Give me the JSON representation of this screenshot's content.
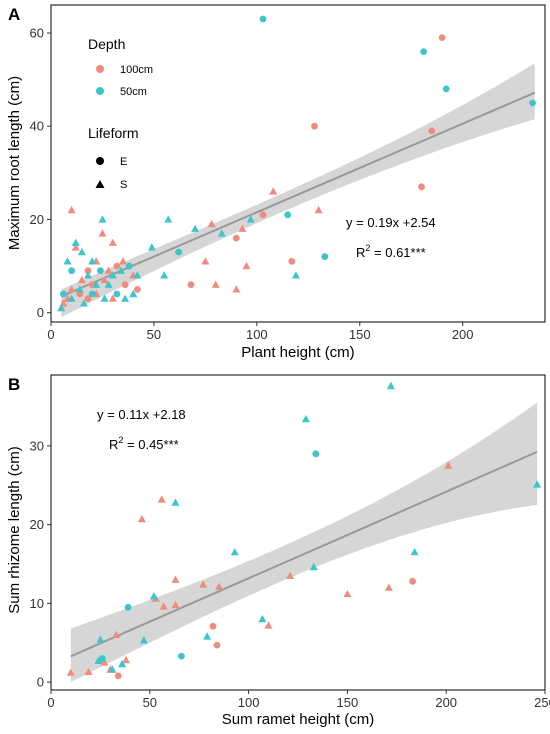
{
  "chart_data": [
    {
      "panel": "A",
      "type": "scatter",
      "xlabel": "Plant height (cm)",
      "ylabel": "Maximum root length (cm)",
      "xlim": [
        0,
        240
      ],
      "ylim": [
        -2,
        66
      ],
      "xticks": [
        "0",
        "50",
        "100",
        "150",
        "200"
      ],
      "xtick_values": [
        0,
        50,
        100,
        150,
        200
      ],
      "yticks": [
        "0",
        "20",
        "40",
        "60"
      ],
      "ytick_values": [
        0,
        20,
        40,
        60
      ],
      "equation": "y = 0.19x +2.54",
      "r2_prefix": "R",
      "r2_exp": "2",
      "r2_value": " = 0.61***",
      "fit": {
        "slope": 0.19,
        "intercept": 2.54,
        "x_range": [
          5,
          235
        ],
        "ci_low_ends": [
          -1,
          41.5
        ],
        "ci_high_ends": [
          5,
          53.5
        ]
      },
      "legend": {
        "depth_title": "Depth",
        "depth_items": [
          {
            "label": "100cm",
            "color": "#F08C7F"
          },
          {
            "label": "50cm",
            "color": "#3CC6C9"
          }
        ],
        "lifeform_title": "Lifeform",
        "lifeform_items": [
          {
            "label": "E",
            "shape": "circle"
          },
          {
            "label": "S",
            "shape": "triangle"
          }
        ]
      },
      "series": [
        {
          "name": "100cm",
          "color": "#F08C7F",
          "points": [
            {
              "x": 190,
              "y": 59,
              "s": "E"
            },
            {
              "x": 128,
              "y": 40,
              "s": "E"
            },
            {
              "x": 185,
              "y": 39,
              "s": "E"
            },
            {
              "x": 180,
              "y": 27,
              "s": "E"
            },
            {
              "x": 108,
              "y": 26,
              "s": "S"
            },
            {
              "x": 130,
              "y": 22,
              "s": "S"
            },
            {
              "x": 103,
              "y": 21,
              "s": "E"
            },
            {
              "x": 78,
              "y": 19,
              "s": "S"
            },
            {
              "x": 93,
              "y": 18,
              "s": "S"
            },
            {
              "x": 90,
              "y": 16,
              "s": "E"
            },
            {
              "x": 75,
              "y": 11,
              "s": "S"
            },
            {
              "x": 117,
              "y": 11,
              "s": "E"
            },
            {
              "x": 95,
              "y": 10,
              "s": "S"
            },
            {
              "x": 68,
              "y": 6,
              "s": "E"
            },
            {
              "x": 80,
              "y": 6,
              "s": "S"
            },
            {
              "x": 90,
              "y": 5,
              "s": "S"
            },
            {
              "x": 10,
              "y": 22,
              "s": "S"
            },
            {
              "x": 12,
              "y": 14,
              "s": "S"
            },
            {
              "x": 25,
              "y": 17,
              "s": "S"
            },
            {
              "x": 30,
              "y": 15,
              "s": "S"
            },
            {
              "x": 22,
              "y": 11,
              "s": "S"
            },
            {
              "x": 35,
              "y": 11,
              "s": "S"
            },
            {
              "x": 18,
              "y": 9,
              "s": "E"
            },
            {
              "x": 28,
              "y": 9,
              "s": "S"
            },
            {
              "x": 32,
              "y": 10,
              "s": "E"
            },
            {
              "x": 40,
              "y": 8,
              "s": "S"
            },
            {
              "x": 15,
              "y": 7,
              "s": "S"
            },
            {
              "x": 20,
              "y": 6,
              "s": "E"
            },
            {
              "x": 26,
              "y": 7,
              "s": "S"
            },
            {
              "x": 36,
              "y": 6,
              "s": "E"
            },
            {
              "x": 10,
              "y": 5,
              "s": "S"
            },
            {
              "x": 14,
              "y": 4,
              "s": "E"
            },
            {
              "x": 8,
              "y": 3,
              "s": "S"
            },
            {
              "x": 22,
              "y": 4,
              "s": "S"
            },
            {
              "x": 42,
              "y": 5,
              "s": "E"
            },
            {
              "x": 6,
              "y": 2,
              "s": "S"
            },
            {
              "x": 30,
              "y": 3,
              "s": "S"
            },
            {
              "x": 18,
              "y": 3,
              "s": "E"
            }
          ]
        },
        {
          "name": "50cm",
          "color": "#3CC6C9",
          "points": [
            {
              "x": 103,
              "y": 63,
              "s": "E"
            },
            {
              "x": 181,
              "y": 56,
              "s": "E"
            },
            {
              "x": 192,
              "y": 48,
              "s": "E"
            },
            {
              "x": 234,
              "y": 45,
              "s": "E"
            },
            {
              "x": 115,
              "y": 21,
              "s": "E"
            },
            {
              "x": 57,
              "y": 20,
              "s": "S"
            },
            {
              "x": 97,
              "y": 20,
              "s": "S"
            },
            {
              "x": 83,
              "y": 17,
              "s": "S"
            },
            {
              "x": 70,
              "y": 18,
              "s": "S"
            },
            {
              "x": 49,
              "y": 14,
              "s": "S"
            },
            {
              "x": 62,
              "y": 13,
              "s": "E"
            },
            {
              "x": 133,
              "y": 12,
              "s": "E"
            },
            {
              "x": 119,
              "y": 8,
              "s": "S"
            },
            {
              "x": 55,
              "y": 8,
              "s": "S"
            },
            {
              "x": 12,
              "y": 15,
              "s": "S"
            },
            {
              "x": 25,
              "y": 20,
              "s": "S"
            },
            {
              "x": 15,
              "y": 13,
              "s": "S"
            },
            {
              "x": 8,
              "y": 11,
              "s": "S"
            },
            {
              "x": 10,
              "y": 9,
              "s": "E"
            },
            {
              "x": 20,
              "y": 11,
              "s": "S"
            },
            {
              "x": 18,
              "y": 8,
              "s": "S"
            },
            {
              "x": 24,
              "y": 9,
              "s": "E"
            },
            {
              "x": 30,
              "y": 8,
              "s": "S"
            },
            {
              "x": 34,
              "y": 9,
              "s": "S"
            },
            {
              "x": 38,
              "y": 10,
              "s": "E"
            },
            {
              "x": 42,
              "y": 8,
              "s": "S"
            },
            {
              "x": 22,
              "y": 6,
              "s": "S"
            },
            {
              "x": 28,
              "y": 6,
              "s": "S"
            },
            {
              "x": 14,
              "y": 5,
              "s": "S"
            },
            {
              "x": 6,
              "y": 4,
              "s": "E"
            },
            {
              "x": 5,
              "y": 1,
              "s": "S"
            },
            {
              "x": 10,
              "y": 3,
              "s": "S"
            },
            {
              "x": 20,
              "y": 4,
              "s": "E"
            },
            {
              "x": 26,
              "y": 3,
              "s": "S"
            },
            {
              "x": 32,
              "y": 4,
              "s": "E"
            },
            {
              "x": 36,
              "y": 3,
              "s": "S"
            },
            {
              "x": 40,
              "y": 4,
              "s": "S"
            },
            {
              "x": 16,
              "y": 2,
              "s": "S"
            }
          ]
        }
      ]
    },
    {
      "panel": "B",
      "type": "scatter",
      "xlabel": "Sum ramet height (cm)",
      "ylabel": "Sum rhizome length (cm)",
      "xlim": [
        0,
        250
      ],
      "ylim": [
        -1,
        39
      ],
      "xticks": [
        "0",
        "50",
        "100",
        "150",
        "200",
        "250"
      ],
      "xtick_values": [
        0,
        50,
        100,
        150,
        200,
        250
      ],
      "yticks": [
        "0",
        "10",
        "20",
        "30"
      ],
      "ytick_values": [
        0,
        10,
        20,
        30
      ],
      "equation": "y = 0.11x +2.18",
      "r2_prefix": "R",
      "r2_exp": "2",
      "r2_value": " = 0.45***",
      "fit": {
        "slope": 0.11,
        "intercept": 2.18,
        "x_range": [
          10,
          246
        ],
        "ci_low_ends": [
          0,
          22.5
        ],
        "ci_high_ends": [
          6.8,
          35.5
        ]
      },
      "series": [
        {
          "name": "100cm",
          "color": "#F08C7F",
          "points": [
            {
              "x": 201,
              "y": 27.5,
              "s": "S"
            },
            {
              "x": 56,
              "y": 23.2,
              "s": "S"
            },
            {
              "x": 46,
              "y": 20.7,
              "s": "S"
            },
            {
              "x": 63,
              "y": 13,
              "s": "S"
            },
            {
              "x": 77,
              "y": 12.4,
              "s": "S"
            },
            {
              "x": 85,
              "y": 12.1,
              "s": "S"
            },
            {
              "x": 121,
              "y": 13.5,
              "s": "S"
            },
            {
              "x": 171,
              "y": 12,
              "s": "S"
            },
            {
              "x": 183,
              "y": 12.8,
              "s": "E"
            },
            {
              "x": 150,
              "y": 11.2,
              "s": "S"
            },
            {
              "x": 57,
              "y": 9.6,
              "s": "S"
            },
            {
              "x": 63,
              "y": 9.8,
              "s": "S"
            },
            {
              "x": 82,
              "y": 7.1,
              "s": "E"
            },
            {
              "x": 110,
              "y": 7.2,
              "s": "S"
            },
            {
              "x": 84,
              "y": 4.7,
              "s": "E"
            },
            {
              "x": 33,
              "y": 6,
              "s": "S"
            },
            {
              "x": 38,
              "y": 2.8,
              "s": "S"
            },
            {
              "x": 27,
              "y": 2.5,
              "s": "S"
            },
            {
              "x": 30,
              "y": 1.6,
              "s": "S"
            },
            {
              "x": 34,
              "y": 0.8,
              "s": "E"
            },
            {
              "x": 10,
              "y": 1.2,
              "s": "S"
            },
            {
              "x": 19,
              "y": 1.3,
              "s": "S"
            },
            {
              "x": 53,
              "y": 10.6,
              "s": "S"
            }
          ]
        },
        {
          "name": "50cm",
          "color": "#3CC6C9",
          "points": [
            {
              "x": 172,
              "y": 37.6,
              "s": "S"
            },
            {
              "x": 129,
              "y": 33.4,
              "s": "S"
            },
            {
              "x": 134,
              "y": 29,
              "s": "E"
            },
            {
              "x": 246,
              "y": 25.1,
              "s": "S"
            },
            {
              "x": 63,
              "y": 22.8,
              "s": "S"
            },
            {
              "x": 93,
              "y": 16.5,
              "s": "S"
            },
            {
              "x": 184,
              "y": 16.5,
              "s": "S"
            },
            {
              "x": 133,
              "y": 14.6,
              "s": "S"
            },
            {
              "x": 52,
              "y": 10.9,
              "s": "S"
            },
            {
              "x": 39,
              "y": 9.5,
              "s": "E"
            },
            {
              "x": 107,
              "y": 8,
              "s": "S"
            },
            {
              "x": 79,
              "y": 5.8,
              "s": "S"
            },
            {
              "x": 47,
              "y": 5.3,
              "s": "S"
            },
            {
              "x": 25,
              "y": 5.4,
              "s": "S"
            },
            {
              "x": 66,
              "y": 3.3,
              "s": "E"
            },
            {
              "x": 26,
              "y": 3,
              "s": "E"
            },
            {
              "x": 36,
              "y": 2.3,
              "s": "S"
            },
            {
              "x": 31,
              "y": 1.6,
              "s": "S"
            },
            {
              "x": 24,
              "y": 2.7,
              "s": "S"
            }
          ]
        }
      ]
    }
  ]
}
